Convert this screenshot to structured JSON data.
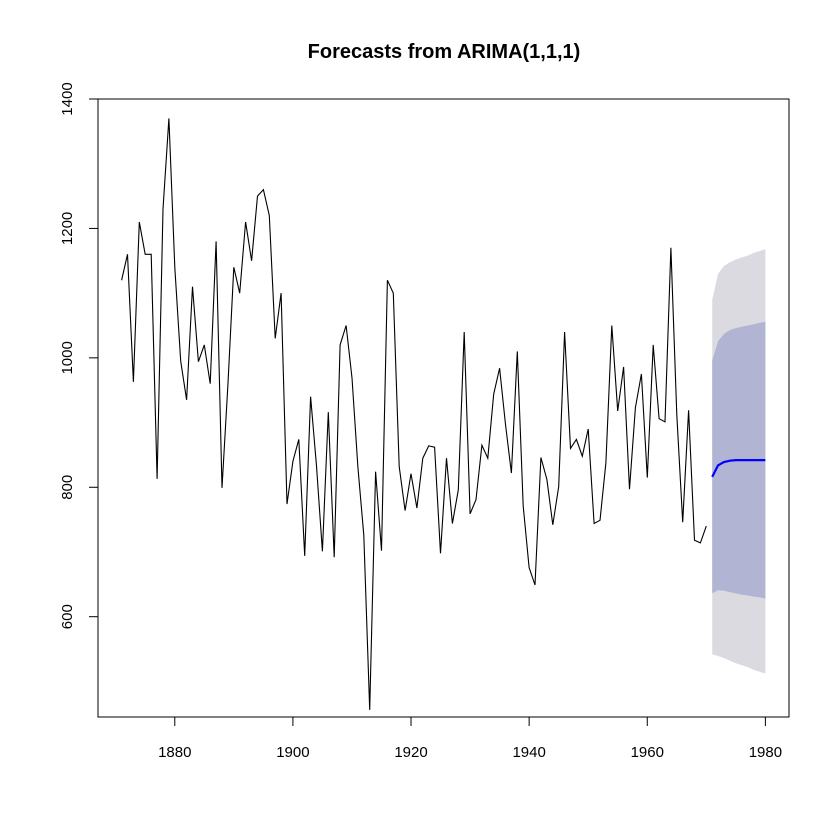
{
  "chart_data": {
    "type": "line",
    "title": "Forecasts from ARIMA(1,1,1)",
    "xlabel": "",
    "ylabel": "",
    "xlim": [
      1867,
      1984
    ],
    "ylim": [
      445,
      1400
    ],
    "x_ticks": [
      1880,
      1900,
      1920,
      1940,
      1960,
      1980
    ],
    "y_ticks": [
      600,
      800,
      1000,
      1200,
      1400
    ],
    "grid": false,
    "legend": "none",
    "colors": {
      "series": "#000000",
      "forecast": "#0000ff",
      "interval_80": "#b1b5d3",
      "interval_95": "#dadae0"
    },
    "series": [
      {
        "x": [
          1871,
          1872,
          1873,
          1874,
          1875,
          1876,
          1877,
          1878,
          1879,
          1880,
          1881,
          1882,
          1883,
          1884,
          1885,
          1886,
          1887,
          1888,
          1889,
          1890,
          1891,
          1892,
          1893,
          1894,
          1895,
          1896,
          1897,
          1898,
          1899,
          1900,
          1901,
          1902,
          1903,
          1904,
          1905,
          1906,
          1907,
          1908,
          1909,
          1910,
          1911,
          1912,
          1913,
          1914,
          1915,
          1916,
          1917,
          1918,
          1919,
          1920,
          1921,
          1922,
          1923,
          1924,
          1925,
          1926,
          1927,
          1928,
          1929,
          1930,
          1931,
          1932,
          1933,
          1934,
          1935,
          1936,
          1937,
          1938,
          1939,
          1940,
          1941,
          1942,
          1943,
          1944,
          1945,
          1946,
          1947,
          1948,
          1949,
          1950,
          1951,
          1952,
          1953,
          1954,
          1955,
          1956,
          1957,
          1958,
          1959,
          1960,
          1961,
          1962,
          1963,
          1964,
          1965,
          1966,
          1967,
          1968,
          1969,
          1970
        ],
        "y": [
          1120,
          1160,
          963,
          1210,
          1160,
          1160,
          813,
          1230,
          1370,
          1140,
          995,
          935,
          1110,
          994,
          1020,
          960,
          1180,
          799,
          958,
          1140,
          1100,
          1210,
          1150,
          1250,
          1260,
          1220,
          1030,
          1100,
          774,
          840,
          874,
          694,
          940,
          833,
          701,
          916,
          692,
          1020,
          1050,
          969,
          831,
          726,
          456,
          824,
          702,
          1120,
          1100,
          832,
          764,
          821,
          768,
          845,
          864,
          862,
          698,
          845,
          744,
          796,
          1040,
          759,
          781,
          865,
          845,
          944,
          984,
          897,
          822,
          1010,
          771,
          676,
          649,
          846,
          812,
          742,
          801,
          1040,
          860,
          874,
          848,
          890,
          744,
          749,
          838,
          1050,
          918,
          986,
          797,
          923,
          975,
          815,
          1020,
          906,
          901,
          1170,
          912,
          746,
          919,
          718,
          714,
          740
        ]
      }
    ],
    "forecast": {
      "x": [
        1971,
        1972,
        1973,
        1974,
        1975,
        1976,
        1977,
        1978,
        1979,
        1980
      ],
      "mean": [
        816,
        834,
        839,
        841,
        842,
        842,
        842,
        842,
        842,
        842
      ],
      "lo80": [
        636,
        641,
        640,
        638,
        636,
        634,
        633,
        631,
        630,
        628
      ],
      "hi80": [
        996,
        1026,
        1037,
        1043,
        1046,
        1048,
        1050,
        1052,
        1054,
        1056
      ],
      "lo95": [
        542,
        539,
        536,
        532,
        528,
        525,
        522,
        518,
        515,
        512
      ],
      "hi95": [
        1090,
        1130,
        1142,
        1148,
        1152,
        1155,
        1158,
        1162,
        1165,
        1168
      ]
    }
  }
}
